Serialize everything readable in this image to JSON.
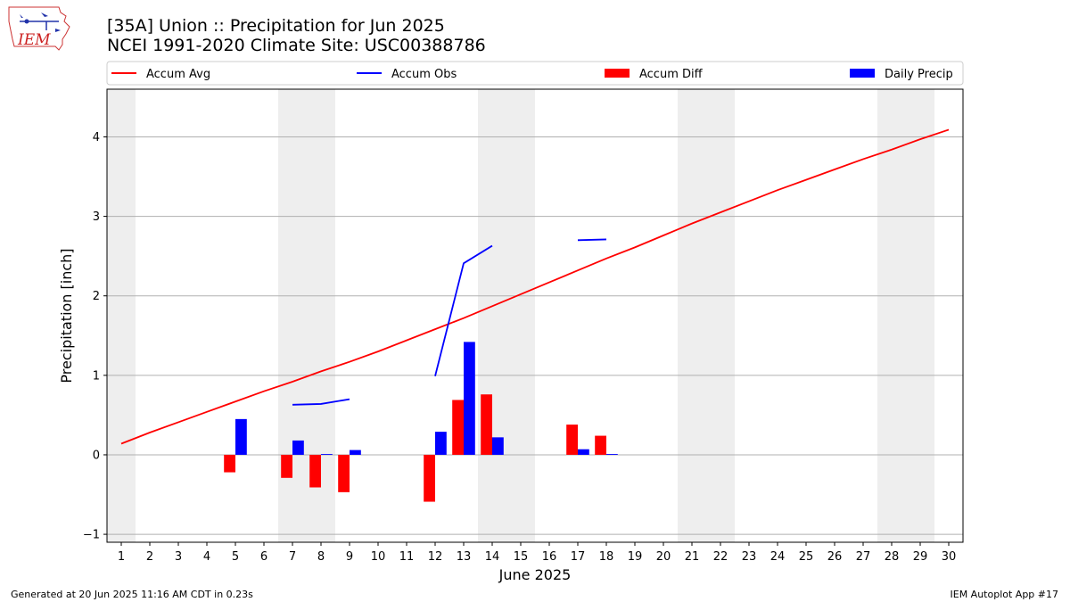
{
  "header": {
    "title_line1": "[35A] Union :: Precipitation for Jun 2025",
    "title_line2": "NCEI 1991-2020 Climate Site: USC00388786"
  },
  "logo": {
    "text": "IEM"
  },
  "footer": {
    "left": "Generated at 20 Jun 2025 11:16 AM CDT in 0.23s",
    "right": "IEM Autoplot App #17"
  },
  "colors": {
    "accum_avg": "#ff0000",
    "accum_obs": "#0000ff",
    "accum_diff": "#ff0000",
    "daily_precip": "#0000ff",
    "weekend_shade": "#eeeeee",
    "grid": "#b0b0b0",
    "logo": "#cc2222"
  },
  "chart_data": {
    "type": "bar",
    "xlabel": "June 2025",
    "ylabel": "Precipitation [inch]",
    "xlim": [
      0.5,
      30.5
    ],
    "ylim": [
      -1.1,
      4.6
    ],
    "x_ticks": [
      1,
      2,
      3,
      4,
      5,
      6,
      7,
      8,
      9,
      10,
      11,
      12,
      13,
      14,
      15,
      16,
      17,
      18,
      19,
      20,
      21,
      22,
      23,
      24,
      25,
      26,
      27,
      28,
      29,
      30
    ],
    "y_ticks": [
      -1,
      0,
      1,
      2,
      3,
      4
    ],
    "grid": "horizontal",
    "legend_position": "top",
    "weekend_bands": [
      [
        0.5,
        1.5
      ],
      [
        6.5,
        8.5
      ],
      [
        13.5,
        15.5
      ],
      [
        20.5,
        22.5
      ],
      [
        27.5,
        29.5
      ]
    ],
    "legend": [
      "Accum Avg",
      "Accum Obs",
      "Accum Diff",
      "Daily Precip"
    ],
    "series": [
      {
        "name": "Accum Avg",
        "kind": "line",
        "x": [
          1,
          2,
          3,
          4,
          5,
          6,
          7,
          8,
          9,
          10,
          11,
          12,
          13,
          14,
          15,
          16,
          17,
          18,
          19,
          20,
          21,
          22,
          23,
          24,
          25,
          26,
          27,
          28,
          29,
          30
        ],
        "values": [
          0.14,
          0.28,
          0.41,
          0.54,
          0.67,
          0.8,
          0.92,
          1.05,
          1.17,
          1.3,
          1.44,
          1.58,
          1.72,
          1.87,
          2.02,
          2.17,
          2.32,
          2.47,
          2.61,
          2.76,
          2.91,
          3.05,
          3.19,
          3.33,
          3.46,
          3.59,
          3.72,
          3.84,
          3.97,
          4.09
        ]
      },
      {
        "name": "Accum Obs",
        "kind": "line",
        "segments": [
          {
            "x": [
              7,
              8,
              9
            ],
            "values": [
              0.63,
              0.64,
              0.7
            ]
          },
          {
            "x": [
              12,
              13,
              14
            ],
            "values": [
              0.99,
              2.41,
              2.63
            ]
          },
          {
            "x": [
              17,
              18
            ],
            "values": [
              2.7,
              2.71
            ]
          }
        ]
      },
      {
        "name": "Accum Diff",
        "kind": "bar",
        "x": [
          5,
          7,
          8,
          9,
          12,
          13,
          14,
          17,
          18
        ],
        "values": [
          -0.22,
          -0.29,
          -0.41,
          -0.47,
          -0.59,
          0.69,
          0.76,
          0.38,
          0.24
        ]
      },
      {
        "name": "Daily Precip",
        "kind": "bar",
        "x": [
          5,
          7,
          8,
          9,
          12,
          13,
          14,
          17,
          18
        ],
        "values": [
          0.45,
          0.18,
          0.01,
          0.06,
          0.29,
          1.42,
          0.22,
          0.07,
          0.01
        ]
      }
    ]
  }
}
